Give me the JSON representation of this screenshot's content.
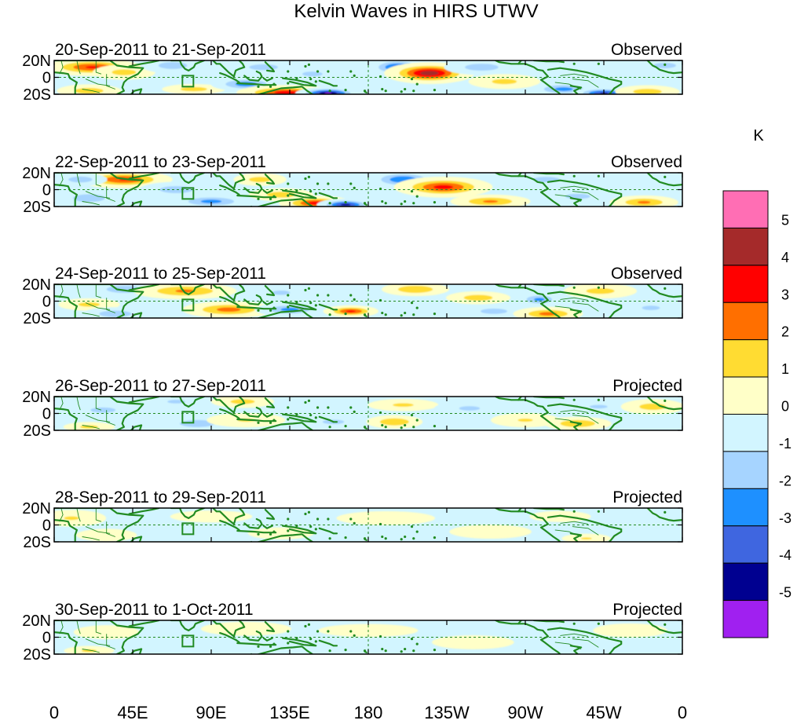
{
  "chart_data": {
    "type": "heatmap",
    "title": "Kelvin Waves in HIRS UTWV",
    "colorbar": {
      "unit": "K",
      "levels": [
        "5",
        "4",
        "3",
        "2",
        "1",
        "0",
        "-1",
        "-2",
        "-3",
        "-4",
        "-5"
      ],
      "colors": [
        "#ff6eb4",
        "#a52a2a",
        "#ff0000",
        "#ff6f00",
        "#ffdc32",
        "#ffffc8",
        "#d2f5ff",
        "#a6d4ff",
        "#1e90ff",
        "#3f66e0",
        "#000090",
        "#a020f0"
      ]
    },
    "x_ticks": [
      "0",
      "45E",
      "90E",
      "135E",
      "180",
      "135W",
      "90W",
      "45W",
      "0"
    ],
    "y_ticks": [
      "20N",
      "0",
      "20S"
    ],
    "lon_range": [
      0,
      360
    ],
    "lat_range": [
      -20,
      20
    ],
    "panels": [
      {
        "date_range": "20-Sep-2011 to 21-Sep-2011",
        "status": "Observed",
        "anomalies": [
          {
            "lon": 22,
            "lat": 12,
            "val": 3.2,
            "rl": 16,
            "rt": 6
          },
          {
            "lon": 40,
            "lat": 6,
            "val": 1.4,
            "rl": 12,
            "rt": 6
          },
          {
            "lon": 20,
            "lat": -16,
            "val": 1.6,
            "rl": 12,
            "rt": 5
          },
          {
            "lon": 68,
            "lat": 14,
            "val": -1.6,
            "rl": 12,
            "rt": 6
          },
          {
            "lon": 80,
            "lat": -14,
            "val": 1.5,
            "rl": 12,
            "rt": 4
          },
          {
            "lon": 110,
            "lat": -8,
            "val": -2.6,
            "rl": 12,
            "rt": 5
          },
          {
            "lon": 133,
            "lat": -18,
            "val": 3.6,
            "rl": 16,
            "rt": 5
          },
          {
            "lon": 157,
            "lat": -19,
            "val": -5.2,
            "rl": 10,
            "rt": 4
          },
          {
            "lon": 120,
            "lat": 12,
            "val": -1.6,
            "rl": 12,
            "rt": 5
          },
          {
            "lon": 148,
            "lat": 4,
            "val": -1.4,
            "rl": 10,
            "rt": 5
          },
          {
            "lon": 197,
            "lat": 12,
            "val": -3.4,
            "rl": 10,
            "rt": 6
          },
          {
            "lon": 215,
            "lat": 5,
            "val": 4.6,
            "rl": 14,
            "rt": 7
          },
          {
            "lon": 245,
            "lat": 12,
            "val": -1.6,
            "rl": 14,
            "rt": 6
          },
          {
            "lon": 258,
            "lat": -5,
            "val": 1.3,
            "rl": 14,
            "rt": 6
          },
          {
            "lon": 292,
            "lat": -14,
            "val": -2.4,
            "rl": 12,
            "rt": 5
          },
          {
            "lon": 315,
            "lat": -19,
            "val": -4.2,
            "rl": 10,
            "rt": 4
          },
          {
            "lon": 340,
            "lat": -17,
            "val": 1.6,
            "rl": 12,
            "rt": 5
          },
          {
            "lon": 350,
            "lat": 14,
            "val": -1.5,
            "rl": 10,
            "rt": 5
          }
        ]
      },
      {
        "date_range": "22-Sep-2011 to 23-Sep-2011",
        "status": "Observed",
        "anomalies": [
          {
            "lon": 40,
            "lat": 12,
            "val": 3.1,
            "rl": 16,
            "rt": 6
          },
          {
            "lon": 15,
            "lat": 12,
            "val": -1.6,
            "rl": 10,
            "rt": 5
          },
          {
            "lon": 20,
            "lat": -10,
            "val": -1.8,
            "rl": 12,
            "rt": 6
          },
          {
            "lon": 70,
            "lat": 0,
            "val": -1.6,
            "rl": 14,
            "rt": 6
          },
          {
            "lon": 90,
            "lat": -14,
            "val": -2.4,
            "rl": 14,
            "rt": 5
          },
          {
            "lon": 118,
            "lat": 12,
            "val": 1.5,
            "rl": 10,
            "rt": 5
          },
          {
            "lon": 130,
            "lat": -6,
            "val": 1.6,
            "rl": 12,
            "rt": 5
          },
          {
            "lon": 150,
            "lat": -16,
            "val": 3.5,
            "rl": 12,
            "rt": 5
          },
          {
            "lon": 167,
            "lat": -18,
            "val": -4.4,
            "rl": 9,
            "rt": 4
          },
          {
            "lon": 200,
            "lat": 12,
            "val": -3.0,
            "rl": 12,
            "rt": 6
          },
          {
            "lon": 223,
            "lat": 3,
            "val": 3.4,
            "rl": 16,
            "rt": 7
          },
          {
            "lon": 250,
            "lat": -14,
            "val": 2.2,
            "rl": 14,
            "rt": 5
          },
          {
            "lon": 282,
            "lat": 12,
            "val": -1.5,
            "rl": 12,
            "rt": 5
          },
          {
            "lon": 300,
            "lat": -8,
            "val": -1.3,
            "rl": 14,
            "rt": 6
          },
          {
            "lon": 338,
            "lat": -15,
            "val": 2.2,
            "rl": 12,
            "rt": 5
          }
        ]
      },
      {
        "date_range": "24-Sep-2011 to 25-Sep-2011",
        "status": "Observed",
        "anomalies": [
          {
            "lon": 40,
            "lat": 14,
            "val": -2.0,
            "rl": 12,
            "rt": 5
          },
          {
            "lon": 20,
            "lat": -4,
            "val": 1.3,
            "rl": 12,
            "rt": 5
          },
          {
            "lon": 35,
            "lat": -15,
            "val": -1.8,
            "rl": 12,
            "rt": 5
          },
          {
            "lon": 75,
            "lat": 12,
            "val": 2.2,
            "rl": 18,
            "rt": 6
          },
          {
            "lon": 100,
            "lat": -10,
            "val": 2.4,
            "rl": 16,
            "rt": 6
          },
          {
            "lon": 135,
            "lat": -10,
            "val": -2.4,
            "rl": 12,
            "rt": 5
          },
          {
            "lon": 130,
            "lat": 10,
            "val": -1.3,
            "rl": 10,
            "rt": 5
          },
          {
            "lon": 170,
            "lat": -12,
            "val": 3.3,
            "rl": 9,
            "rt": 4
          },
          {
            "lon": 207,
            "lat": 14,
            "val": 2.0,
            "rl": 12,
            "rt": 5
          },
          {
            "lon": 243,
            "lat": 4,
            "val": 1.6,
            "rl": 12,
            "rt": 5
          },
          {
            "lon": 252,
            "lat": -12,
            "val": -1.5,
            "rl": 12,
            "rt": 5
          },
          {
            "lon": 283,
            "lat": -15,
            "val": 2.4,
            "rl": 12,
            "rt": 5
          },
          {
            "lon": 278,
            "lat": 2,
            "val": -2.3,
            "rl": 8,
            "rt": 5
          },
          {
            "lon": 313,
            "lat": 12,
            "val": 1.4,
            "rl": 14,
            "rt": 6
          },
          {
            "lon": 342,
            "lat": -8,
            "val": -1.2,
            "rl": 12,
            "rt": 6
          }
        ]
      },
      {
        "date_range": "26-Sep-2011 to 27-Sep-2011",
        "status": "Projected",
        "anomalies": [
          {
            "lon": 28,
            "lat": 4,
            "val": -1.3,
            "rl": 14,
            "rt": 6
          },
          {
            "lon": 20,
            "lat": -16,
            "val": 1.3,
            "rl": 10,
            "rt": 4
          },
          {
            "lon": 70,
            "lat": 14,
            "val": -1.2,
            "rl": 12,
            "rt": 5
          },
          {
            "lon": 108,
            "lat": 14,
            "val": 1.4,
            "rl": 12,
            "rt": 5
          },
          {
            "lon": 82,
            "lat": -12,
            "val": -2.0,
            "rl": 12,
            "rt": 5
          },
          {
            "lon": 110,
            "lat": -8,
            "val": 1.1,
            "rl": 16,
            "rt": 6
          },
          {
            "lon": 160,
            "lat": -10,
            "val": -1.3,
            "rl": 12,
            "rt": 5
          },
          {
            "lon": 195,
            "lat": -10,
            "val": 2.0,
            "rl": 10,
            "rt": 5
          },
          {
            "lon": 200,
            "lat": 10,
            "val": 1.2,
            "rl": 14,
            "rt": 5
          },
          {
            "lon": 238,
            "lat": 6,
            "val": -1.2,
            "rl": 14,
            "rt": 6
          },
          {
            "lon": 270,
            "lat": -8,
            "val": 1.1,
            "rl": 14,
            "rt": 6
          },
          {
            "lon": 300,
            "lat": -12,
            "val": 2.0,
            "rl": 12,
            "rt": 5
          },
          {
            "lon": 312,
            "lat": 8,
            "val": -1.2,
            "rl": 12,
            "rt": 5
          },
          {
            "lon": 343,
            "lat": 8,
            "val": 1.5,
            "rl": 12,
            "rt": 6
          }
        ]
      },
      {
        "date_range": "28-Sep-2011 to 29-Sep-2011",
        "status": "Projected",
        "anomalies": [
          {
            "lon": 10,
            "lat": 8,
            "val": 1.1,
            "rl": 14,
            "rt": 7
          },
          {
            "lon": 30,
            "lat": -12,
            "val": 0.7,
            "rl": 14,
            "rt": 6
          },
          {
            "lon": 90,
            "lat": 10,
            "val": 0.6,
            "rl": 20,
            "rt": 6
          },
          {
            "lon": 130,
            "lat": -10,
            "val": 0.6,
            "rl": 16,
            "rt": 6
          },
          {
            "lon": 190,
            "lat": 8,
            "val": 0.6,
            "rl": 24,
            "rt": 7
          },
          {
            "lon": 250,
            "lat": -8,
            "val": 0.6,
            "rl": 20,
            "rt": 7
          },
          {
            "lon": 290,
            "lat": 10,
            "val": 0.5,
            "rl": 16,
            "rt": 6
          },
          {
            "lon": 305,
            "lat": -16,
            "val": 1.1,
            "rl": 10,
            "rt": 4
          }
        ]
      },
      {
        "date_range": "30-Sep-2011 to 1-Oct-2011",
        "status": "Projected",
        "anomalies": [
          {
            "lon": 20,
            "lat": -16,
            "val": 1.2,
            "rl": 10,
            "rt": 4
          },
          {
            "lon": 30,
            "lat": 6,
            "val": 0.6,
            "rl": 16,
            "rt": 7
          },
          {
            "lon": 110,
            "lat": 10,
            "val": 0.6,
            "rl": 22,
            "rt": 7
          },
          {
            "lon": 180,
            "lat": 8,
            "val": 0.5,
            "rl": 26,
            "rt": 7
          },
          {
            "lon": 240,
            "lat": -6,
            "val": 0.6,
            "rl": 20,
            "rt": 7
          },
          {
            "lon": 330,
            "lat": 8,
            "val": 0.6,
            "rl": 18,
            "rt": 7
          }
        ]
      }
    ]
  }
}
